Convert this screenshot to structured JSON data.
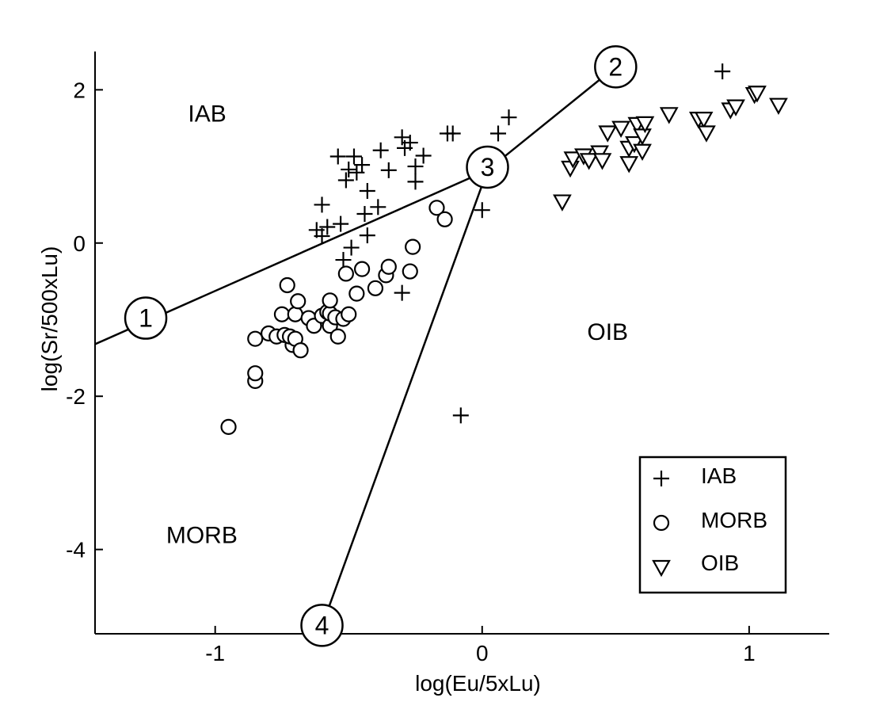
{
  "chart_data": {
    "type": "scatter",
    "xlabel": "log(Eu/5xLu)",
    "ylabel": "log(Sr/500xLu)",
    "xlim": [
      -1.45,
      1.3
    ],
    "ylim": [
      -5.1,
      2.5
    ],
    "xticks": [
      -1,
      0,
      1
    ],
    "yticks": [
      2,
      0,
      -2,
      -4
    ],
    "series": [
      {
        "name": "IAB",
        "marker": "plus",
        "points": [
          [
            -0.6,
            0.5
          ],
          [
            -0.58,
            0.21
          ],
          [
            -0.62,
            0.17
          ],
          [
            -0.6,
            0.09
          ],
          [
            -0.53,
            0.25
          ],
          [
            -0.54,
            1.13
          ],
          [
            -0.5,
            0.96
          ],
          [
            -0.48,
            1.13
          ],
          [
            -0.45,
            1.02
          ],
          [
            -0.51,
            0.82
          ],
          [
            -0.47,
            0.92
          ],
          [
            -0.43,
            0.68
          ],
          [
            -0.44,
            0.38
          ],
          [
            -0.38,
            1.21
          ],
          [
            -0.35,
            0.95
          ],
          [
            -0.3,
            1.38
          ],
          [
            -0.27,
            1.31
          ],
          [
            -0.22,
            1.14
          ],
          [
            -0.25,
            0.8
          ],
          [
            -0.25,
            1.0
          ],
          [
            -0.29,
            1.24
          ],
          [
            -0.13,
            1.43
          ],
          [
            -0.11,
            1.43
          ],
          [
            0.06,
            1.43
          ],
          [
            0.1,
            1.64
          ],
          [
            0.0,
            0.43
          ],
          [
            -0.39,
            0.47
          ],
          [
            -0.43,
            0.1
          ],
          [
            -0.49,
            -0.06
          ],
          [
            -0.52,
            -0.22
          ],
          [
            -0.3,
            -0.65
          ],
          [
            -0.08,
            -2.25
          ],
          [
            0.9,
            2.24
          ]
        ]
      },
      {
        "name": "MORB",
        "marker": "circle",
        "points": [
          [
            -0.95,
            -2.4
          ],
          [
            -0.85,
            -1.8
          ],
          [
            -0.85,
            -1.7
          ],
          [
            -0.85,
            -1.25
          ],
          [
            -0.8,
            -1.18
          ],
          [
            -0.77,
            -1.22
          ],
          [
            -0.74,
            -1.2
          ],
          [
            -0.71,
            -1.33
          ],
          [
            -0.72,
            -1.22
          ],
          [
            -0.7,
            -1.25
          ],
          [
            -0.68,
            -1.4
          ],
          [
            -0.73,
            -0.55
          ],
          [
            -0.75,
            -0.93
          ],
          [
            -0.7,
            -0.93
          ],
          [
            -0.69,
            -0.76
          ],
          [
            -0.65,
            -0.98
          ],
          [
            -0.63,
            -1.08
          ],
          [
            -0.6,
            -0.95
          ],
          [
            -0.58,
            -0.9
          ],
          [
            -0.57,
            -1.08
          ],
          [
            -0.57,
            -0.92
          ],
          [
            -0.55,
            -0.97
          ],
          [
            -0.54,
            -1.22
          ],
          [
            -0.52,
            -0.99
          ],
          [
            -0.51,
            -0.4
          ],
          [
            -0.5,
            -0.93
          ],
          [
            -0.57,
            -0.75
          ],
          [
            -0.47,
            -0.66
          ],
          [
            -0.45,
            -0.34
          ],
          [
            -0.4,
            -0.59
          ],
          [
            -0.36,
            -0.42
          ],
          [
            -0.35,
            -0.31
          ],
          [
            -0.27,
            -0.37
          ],
          [
            -0.26,
            -0.05
          ],
          [
            -0.17,
            0.46
          ],
          [
            -0.14,
            0.31
          ]
        ]
      },
      {
        "name": "OIB",
        "marker": "triangle-down",
        "points": [
          [
            0.3,
            0.54
          ],
          [
            0.33,
            0.98
          ],
          [
            0.34,
            1.1
          ],
          [
            0.38,
            1.14
          ],
          [
            0.4,
            1.08
          ],
          [
            0.44,
            1.18
          ],
          [
            0.45,
            1.08
          ],
          [
            0.47,
            1.44
          ],
          [
            0.52,
            1.5
          ],
          [
            0.55,
            1.04
          ],
          [
            0.55,
            1.24
          ],
          [
            0.57,
            1.3
          ],
          [
            0.58,
            1.55
          ],
          [
            0.6,
            1.4
          ],
          [
            0.6,
            1.2
          ],
          [
            0.61,
            1.56
          ],
          [
            0.7,
            1.68
          ],
          [
            0.81,
            1.62
          ],
          [
            0.83,
            1.62
          ],
          [
            0.84,
            1.44
          ],
          [
            0.93,
            1.74
          ],
          [
            0.95,
            1.78
          ],
          [
            1.02,
            1.94
          ],
          [
            1.03,
            1.96
          ],
          [
            1.11,
            1.8
          ]
        ]
      }
    ],
    "boundary_lines": [
      {
        "from": [
          -1.45,
          -1.32
        ],
        "to": [
          0.02,
          0.95
        ]
      },
      {
        "from": [
          0.02,
          0.95
        ],
        "to": [
          0.5,
          2.3
        ]
      },
      {
        "from": [
          0.02,
          0.95
        ],
        "to": [
          -0.6,
          -5.0
        ]
      }
    ],
    "markers": [
      {
        "label": "1",
        "x": -1.26,
        "y": -0.98
      },
      {
        "label": "2",
        "x": 0.5,
        "y": 2.3
      },
      {
        "label": "3",
        "x": 0.02,
        "y": 0.99
      },
      {
        "label": "4",
        "x": -0.6,
        "y": -4.99
      }
    ],
    "regions": [
      {
        "label": "IAB",
        "x": -1.03,
        "y": 1.7
      },
      {
        "label": "OIB",
        "x": 0.47,
        "y": -1.15
      },
      {
        "label": "MORB",
        "x": -1.05,
        "y": -3.8
      }
    ],
    "legend": {
      "position": "bottom-right",
      "entries": [
        {
          "label": "IAB",
          "marker": "plus"
        },
        {
          "label": "MORB",
          "marker": "circle"
        },
        {
          "label": "OIB",
          "marker": "triangle-down"
        }
      ]
    },
    "grid": false
  }
}
